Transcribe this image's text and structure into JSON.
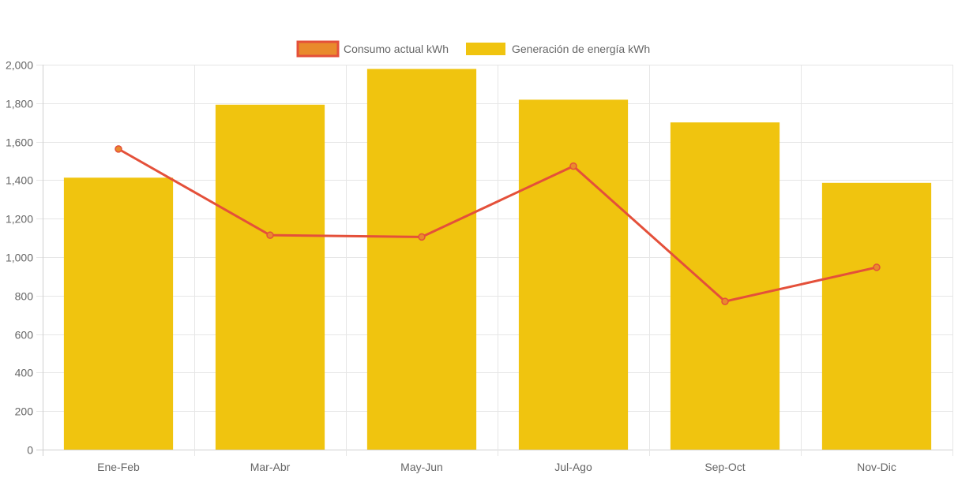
{
  "chart_data": {
    "type": "bar",
    "categories": [
      "Ene-Feb",
      "Mar-Abr",
      "May-Jun",
      "Jul-Ago",
      "Sep-Oct",
      "Nov-Dic"
    ],
    "series": [
      {
        "name": "Consumo actual kWh",
        "type": "line",
        "values": [
          1562,
          1114,
          1105,
          1473,
          770,
          947
        ],
        "color": "#e4503a",
        "point_color": "#e98a2c"
      },
      {
        "name": "Generación de energía kWh",
        "type": "bar",
        "values": [
          1413,
          1792,
          1978,
          1818,
          1700,
          1386
        ],
        "color": "#f0c40f"
      }
    ],
    "y_ticks": [
      "0",
      "200",
      "400",
      "600",
      "800",
      "1,000",
      "1,200",
      "1,400",
      "1,600",
      "1,800",
      "2,000"
    ],
    "ylim": [
      0,
      2000
    ],
    "grid": true,
    "legend_position": "top"
  }
}
